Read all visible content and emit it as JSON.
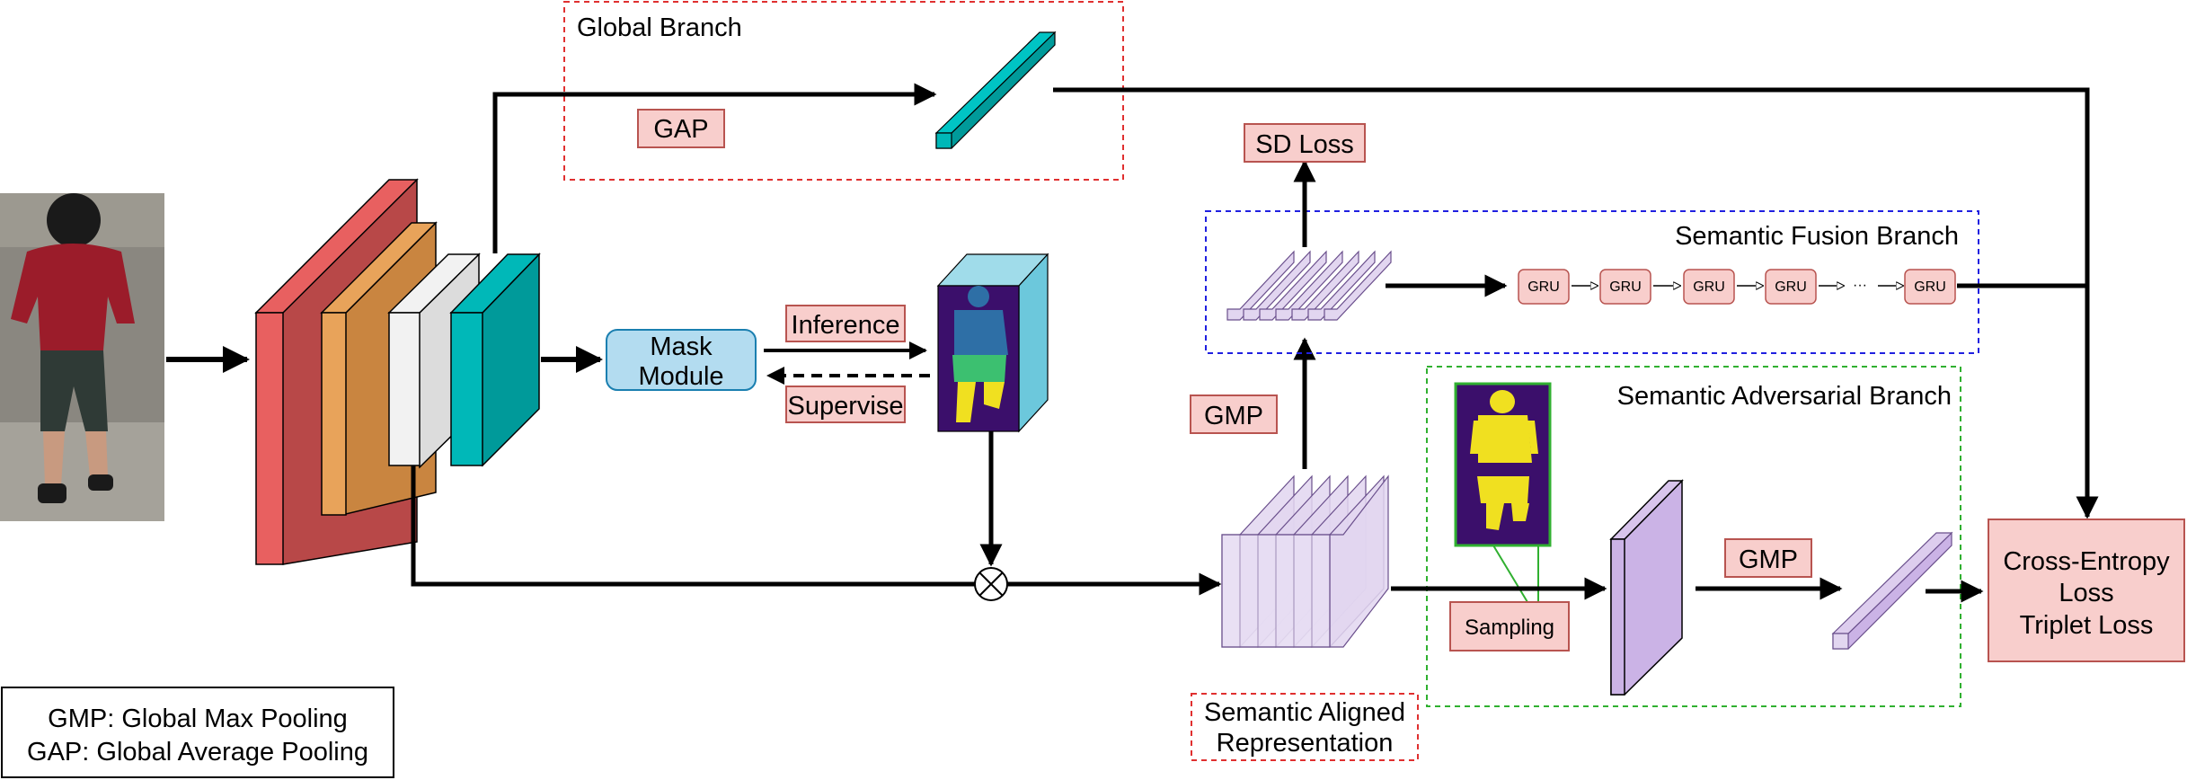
{
  "diagram": {
    "global_branch": {
      "title": "Global Branch",
      "gap": "GAP"
    },
    "mask_module": {
      "line1": "Mask",
      "line2": "Module"
    },
    "inference": "Inference",
    "supervise": "Supervise",
    "sd_loss": "SD Loss",
    "gmp_vertical": "GMP",
    "semantic_fusion": {
      "title": "Semantic Fusion Branch",
      "gru": "GRU",
      "ellipsis": "···"
    },
    "semantic_adversarial": {
      "title": "Semantic Adversarial Branch",
      "sampling": "Sampling",
      "gmp": "GMP"
    },
    "semantic_aligned": {
      "line1": "Semantic Aligned",
      "line2": "Representation"
    },
    "losses": {
      "line1": "Cross-Entropy",
      "line2": "Loss",
      "line3": "Triplet Loss"
    },
    "legend": {
      "gmp": "GMP: Global Max Pooling",
      "gap": "GAP: Global Average Pooling"
    },
    "colors": {
      "red_block": "#e86060",
      "orange_block": "#e8a35a",
      "white_block": "#f2f2f2",
      "teal_block": "#00b8b8",
      "mask_module": "#b3dcf0",
      "purple_light": "#e2d6f0",
      "purple_mid": "#cbb3e6",
      "pink_box": "#f8cecc",
      "dash_red": "#e03030",
      "dash_blue": "#2020e0",
      "dash_green": "#30b030"
    }
  }
}
